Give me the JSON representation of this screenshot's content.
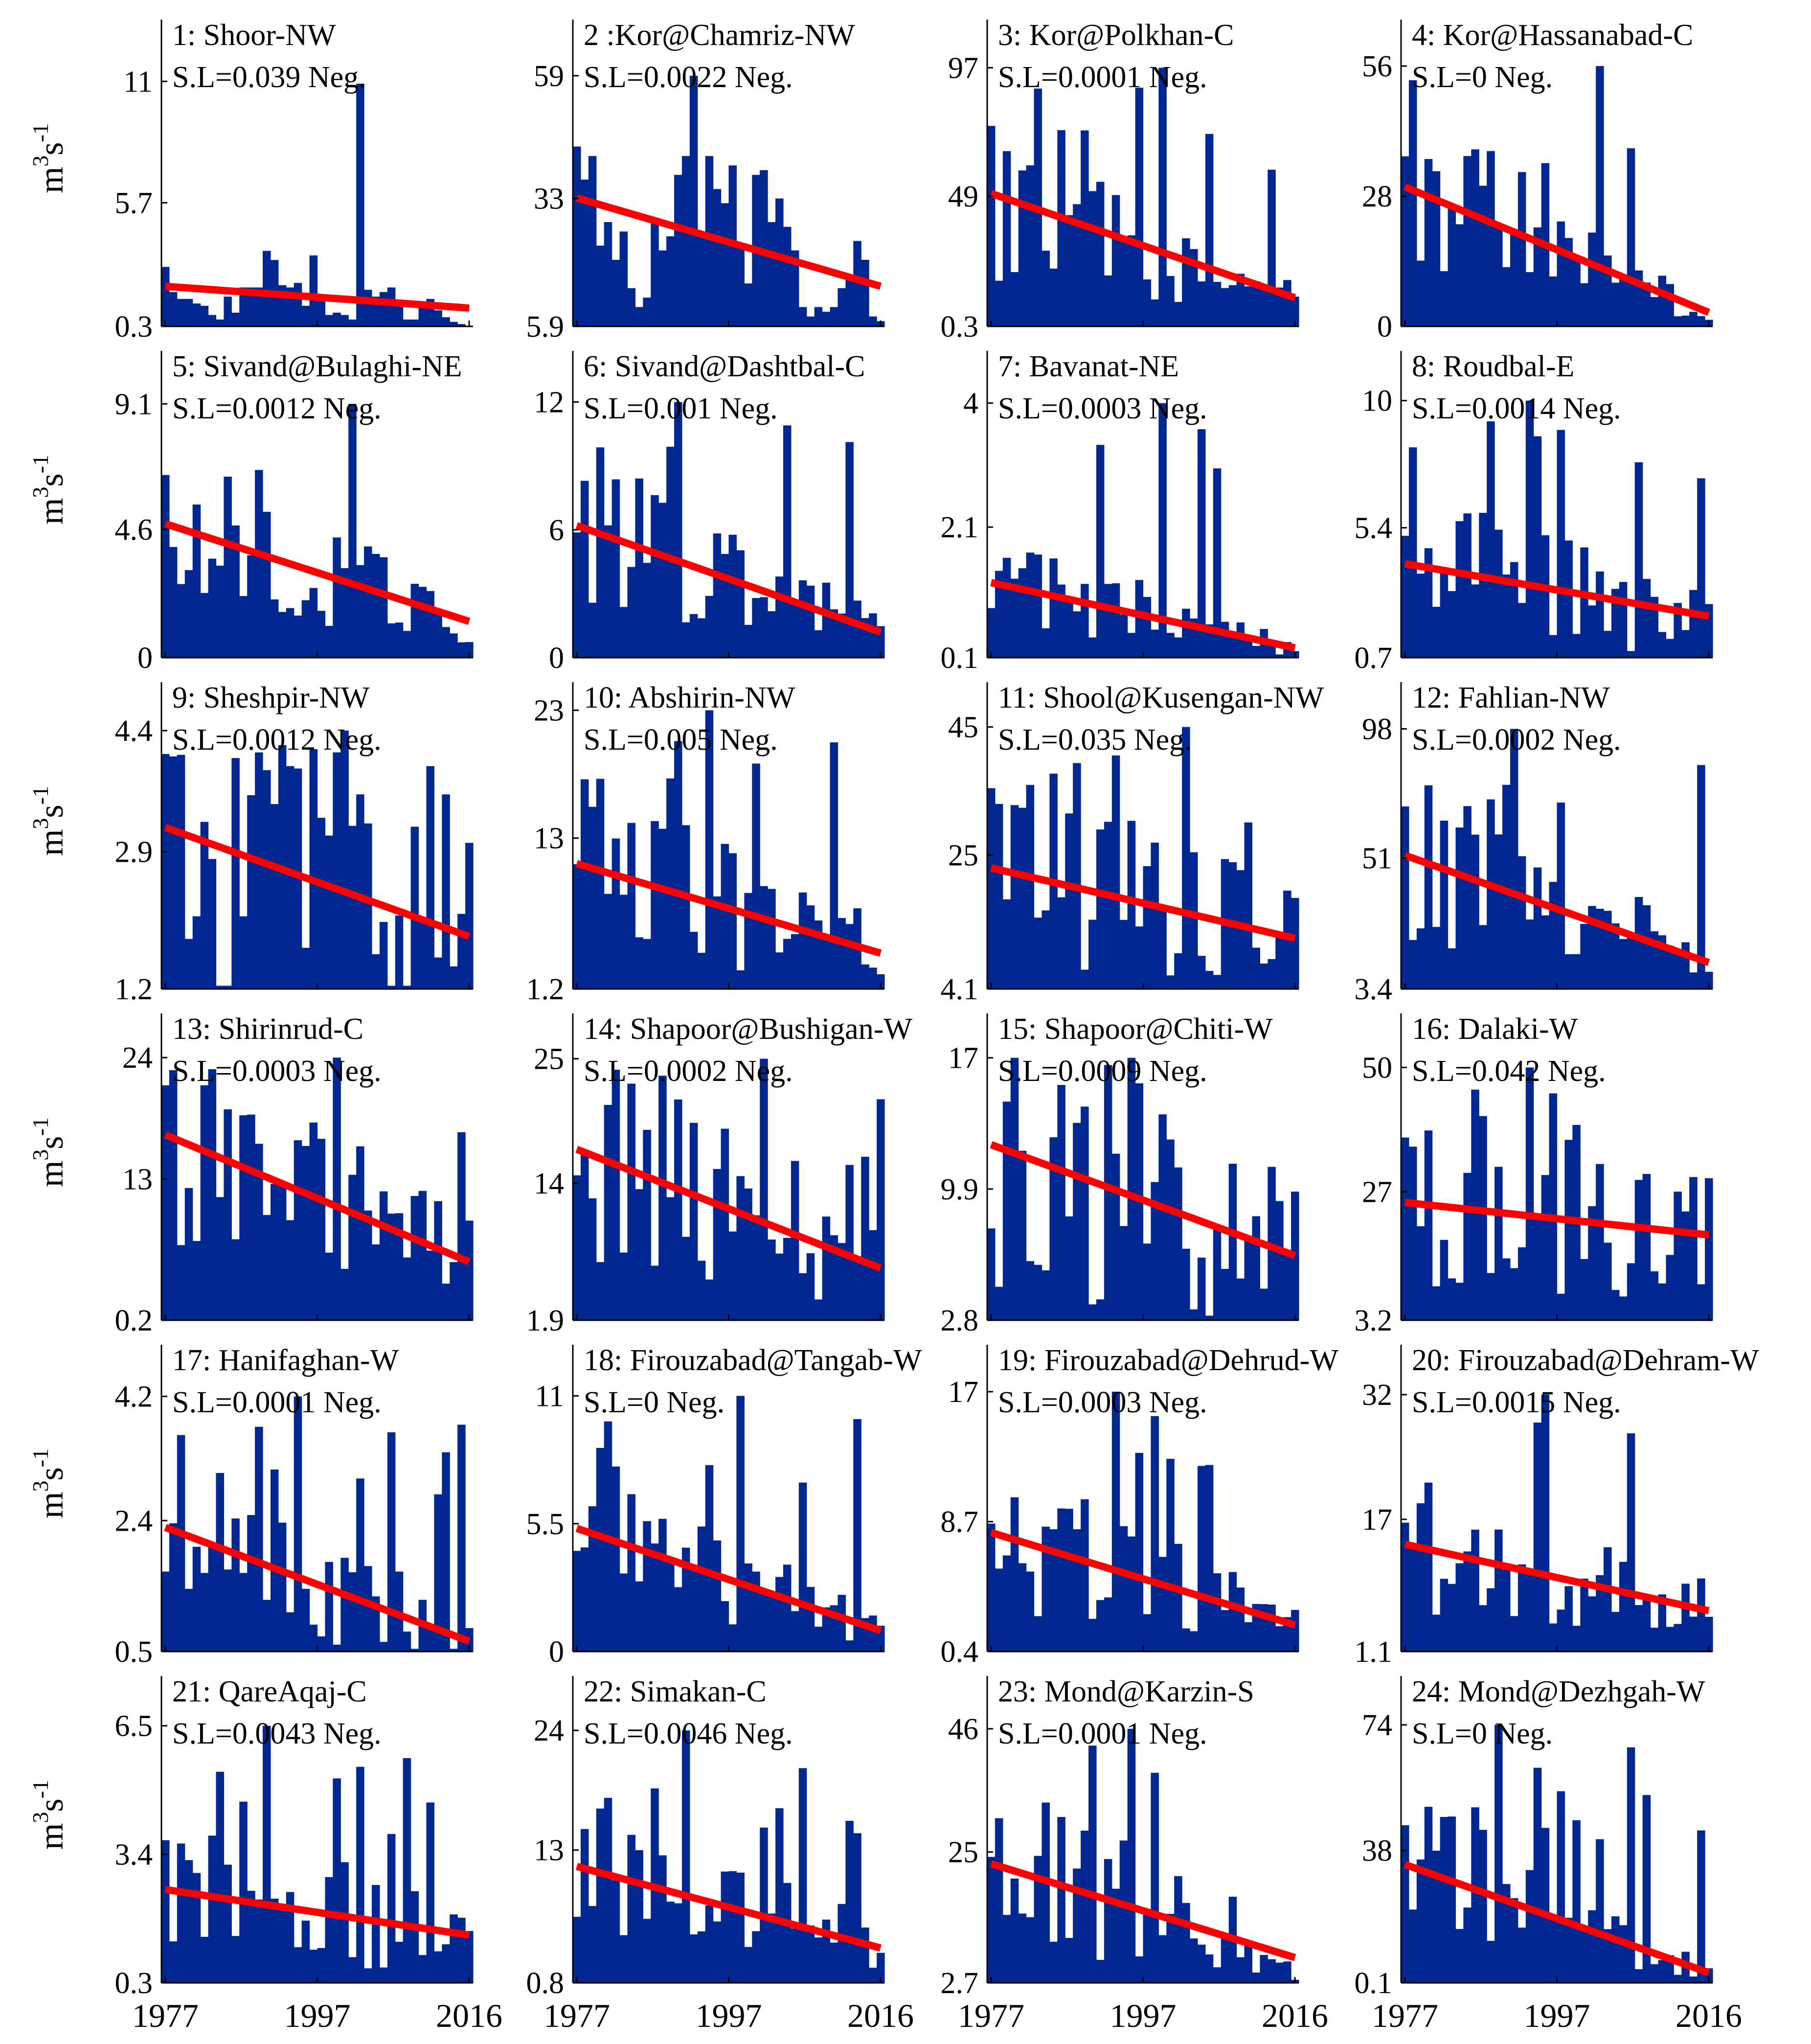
{
  "figure": {
    "ylabel": "m³s⁻¹",
    "ylabel_base": "m",
    "ylabel_sup1": "3",
    "ylabel_mid": "s",
    "ylabel_sup2": "-1",
    "bar_color": "#002890",
    "trend_color": "#ff0000",
    "x_tick_labels": [
      "1977",
      "1997",
      "2016"
    ]
  },
  "chart_data": [
    {
      "type": "bar",
      "title": "1: Shoor-NW",
      "sl": "S.L=0.039 Neg.",
      "yticks": [
        "0.3",
        "5.7",
        "11"
      ],
      "ylim": [
        0.3,
        13.7
      ],
      "trend": [
        2.05,
        1.1
      ],
      "values": [
        2.9,
        1.8,
        1.5,
        1.5,
        1.3,
        1.2,
        0.8,
        0.6,
        1.6,
        0.9,
        2.0,
        2.0,
        2.0,
        3.6,
        3.2,
        2.1,
        2.0,
        2.2,
        1.2,
        3.4,
        1.5,
        0.8,
        0.9,
        0.8,
        0.6,
        10.9,
        1.9,
        1.6,
        1.8,
        2.0,
        1.4,
        0.6,
        0.6,
        1.2,
        1.5,
        1.0,
        0.7,
        0.5,
        0.4,
        0.3
      ]
    },
    {
      "type": "bar",
      "title": "2 :Kor@Chamriz-NW",
      "sl": "S.L=0.0022  Neg.",
      "yticks": [
        "5.9",
        "33",
        "59"
      ],
      "ylim": [
        5.9,
        70.9
      ],
      "trend": [
        33.1,
        14.4
      ],
      "values": [
        44,
        37,
        42,
        23,
        28,
        20,
        26,
        14,
        10,
        12,
        28,
        22,
        25,
        38,
        42,
        59,
        26,
        42,
        35,
        32,
        40,
        23,
        15,
        38,
        39,
        28,
        33,
        27,
        22,
        10,
        8,
        10,
        9,
        10,
        14,
        16,
        24,
        20,
        8,
        7
      ]
    },
    {
      "type": "bar",
      "title": "3: Kor@Polkhan-C",
      "sl": "S.L=0.0001  Neg.",
      "yticks": [
        "0.3",
        "49",
        "97"
      ],
      "ylim": [
        0.3,
        115
      ],
      "trend": [
        50,
        11
      ]
    },
    {
      "type": "bar",
      "title": "4: Kor@Hassanabad-C",
      "sl": "S.L=0  Neg.",
      "yticks": [
        "0",
        "28",
        "56"
      ],
      "ylim": [
        0,
        66
      ],
      "trend": [
        30,
        3
      ]
    },
    {
      "type": "bar",
      "title": "5: Sivand@Bulaghi-NE",
      "sl": "S.L=0.0012  Neg.",
      "yticks": [
        "0",
        "4.6",
        "9.1"
      ],
      "ylim": [
        0,
        11
      ],
      "trend": [
        4.8,
        1.3
      ]
    },
    {
      "type": "bar",
      "title": "6: Sivand@Dashtbal-C",
      "sl": "S.L=0.001  Neg.",
      "yticks": [
        "0",
        "6",
        "12"
      ],
      "ylim": [
        0,
        14.4
      ],
      "trend": [
        6.2,
        1.2
      ]
    },
    {
      "type": "bar",
      "title": "7: Bavanat-NE",
      "sl": "S.L=0.0003  Neg.",
      "yticks": [
        "0.1",
        "2.1",
        "4"
      ],
      "ylim": [
        0.1,
        4.8
      ],
      "trend": [
        1.25,
        0.25
      ]
    },
    {
      "type": "bar",
      "title": "8: Roudbal-E",
      "sl": "S.L=0.0014  Neg.",
      "yticks": [
        "0.7",
        "5.4",
        "10"
      ],
      "ylim": [
        0.7,
        11.8
      ],
      "trend": [
        4.1,
        2.2
      ]
    },
    {
      "type": "bar",
      "title": "9: Sheshpir-NW",
      "sl": "S.L=0.0012  Neg.",
      "yticks": [
        "1.2",
        "2.9",
        "4.4"
      ],
      "ylim": [
        1.2,
        5.0
      ],
      "trend": [
        3.2,
        1.85
      ]
    },
    {
      "type": "bar",
      "title": "10: Abshirin-NW",
      "sl": "S.L=0.005  Neg.",
      "yticks": [
        "1.2",
        "13",
        "23"
      ],
      "ylim": [
        1.2,
        25.2
      ],
      "trend": [
        11,
        4
      ]
    },
    {
      "type": "bar",
      "title": "11: Shool@Kusengan-NW",
      "sl": "S.L=0.035 Neg.",
      "yticks": [
        "4.1",
        "25",
        "45"
      ],
      "ylim": [
        4.1,
        52
      ],
      "trend": [
        23,
        12
      ]
    },
    {
      "type": "bar",
      "title": "12: Fahlian-NW",
      "sl": "S.L=0.0002  Neg.",
      "yticks": [
        "3.4",
        "51",
        "98"
      ],
      "ylim": [
        3.4,
        115
      ],
      "trend": [
        52,
        13
      ]
    },
    {
      "type": "bar",
      "title": "13: Shirinrud-C",
      "sl": "S.L=0.0003  Neg.",
      "yticks": [
        "0.2",
        "13",
        "24"
      ],
      "ylim": [
        0.2,
        28
      ],
      "trend": [
        17,
        5.5
      ]
    },
    {
      "type": "bar",
      "title": "14: Shapoor@Bushigan-W",
      "sl": "S.L=0.0002  Neg.",
      "yticks": [
        "1.9",
        "14",
        "25"
      ],
      "ylim": [
        1.9,
        29
      ],
      "trend": [
        17,
        6.5
      ]
    },
    {
      "type": "bar",
      "title": "15: Shapoor@Chiti-W",
      "sl": "S.L=0.0009  Neg.",
      "yticks": [
        "2.8",
        "9.9",
        "17"
      ],
      "ylim": [
        2.8,
        19.4
      ],
      "trend": [
        12.3,
        6.3
      ]
    },
    {
      "type": "bar",
      "title": "16: Dalaki-W",
      "sl": "S.L=0.042 Neg.",
      "yticks": [
        "3.2",
        "27",
        "50"
      ],
      "ylim": [
        3.2,
        60
      ],
      "trend": [
        25,
        19
      ]
    },
    {
      "type": "bar",
      "title": "17: Hanifaghan-W",
      "sl": "S.L=0.0001  Neg.",
      "yticks": [
        "0.5",
        "2.4",
        "4.2"
      ],
      "ylim": [
        0.5,
        4.95
      ],
      "trend": [
        2.3,
        0.65
      ]
    },
    {
      "type": "bar",
      "title": "18: Firouzabad@Tangab-W",
      "sl": "S.L=0  Neg.",
      "yticks": [
        "0",
        "5.5",
        "11"
      ],
      "ylim": [
        0,
        13.2
      ],
      "trend": [
        5.3,
        0.9
      ]
    },
    {
      "type": "bar",
      "title": "19: Firouzabad@Dehrud-W",
      "sl": "S.L=0.0003  Neg.",
      "yticks": [
        "0.4",
        "8.7",
        "17"
      ],
      "ylim": [
        0.4,
        20
      ],
      "trend": [
        8.0,
        2.1
      ]
    },
    {
      "type": "bar",
      "title": "20: Firouzabad@Dehram-W",
      "sl": "S.L=0.0015  Neg.",
      "yticks": [
        "1.1",
        "17",
        "32"
      ],
      "ylim": [
        1.1,
        38
      ],
      "trend": [
        14,
        6
      ]
    },
    {
      "type": "bar",
      "title": "21: QareAqaj-C",
      "sl": "S.L=0.0043  Neg.",
      "yticks": [
        "0.3",
        "3.4",
        "6.5"
      ],
      "ylim": [
        0.3,
        7.7
      ],
      "trend": [
        2.55,
        1.45
      ]
    },
    {
      "type": "bar",
      "title": "22: Simakan-C",
      "sl": "S.L=0.0046  Neg.",
      "yticks": [
        "0.8",
        "13",
        "24"
      ],
      "ylim": [
        0.8,
        29
      ],
      "trend": [
        11.5,
        4.0
      ]
    },
    {
      "type": "bar",
      "title": "23: Mond@Karzin-S",
      "sl": "S.L=0.0001  Neg.",
      "yticks": [
        "2.7",
        "25",
        "46"
      ],
      "ylim": [
        2.7,
        55
      ],
      "trend": [
        23,
        7
      ]
    },
    {
      "type": "bar",
      "title": "24: Mond@Dezhgah-W",
      "sl": "S.L=0  Neg.",
      "yticks": [
        "0.1",
        "38",
        "74"
      ],
      "ylim": [
        0.1,
        88
      ],
      "trend": [
        34,
        3
      ]
    }
  ]
}
